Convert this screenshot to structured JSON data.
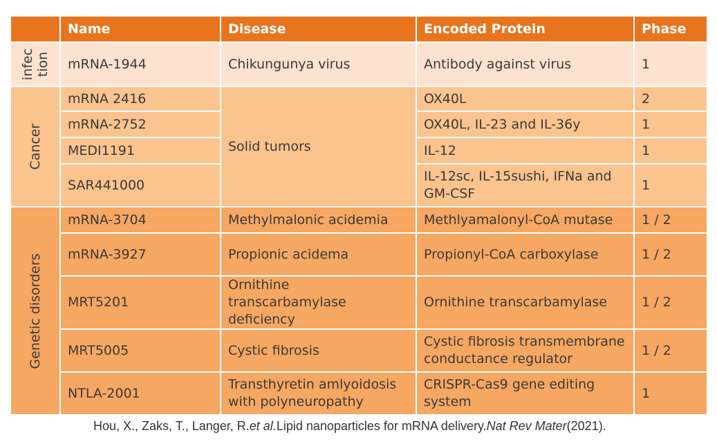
{
  "headers": {
    "name": "Name",
    "disease": "Disease",
    "protein": "Encoded Protein",
    "phase": "Phase"
  },
  "groups": {
    "infection": {
      "label_line1": "infec",
      "label_line2": "tion"
    },
    "cancer": {
      "label": "Cancer",
      "shared_disease": "Solid tumors"
    },
    "genetic": {
      "label": "Genetic disorders"
    }
  },
  "rows": [
    {
      "name": "mRNA-1944",
      "disease": "Chikungunya virus",
      "protein": "Antibody against virus",
      "phase": "1"
    },
    {
      "name": "mRNA 2416",
      "disease": "",
      "protein": "OX40L",
      "phase": "2"
    },
    {
      "name": "mRNA-2752",
      "disease": "",
      "protein": "OX40L, IL-23 and IL-36y",
      "phase": "1"
    },
    {
      "name": "MEDI1191",
      "disease": "",
      "protein": "IL-12",
      "phase": "1"
    },
    {
      "name": "SAR441000",
      "disease": "",
      "protein": "IL-12sc, IL-15sushi, IFNa and GM-CSF",
      "phase": "1"
    },
    {
      "name": "mRNA-3704",
      "disease": "Methylmalonic acidemia",
      "protein": "Methlyamalonyl-CoA  mutase",
      "phase": "1 / 2"
    },
    {
      "name": "mRNA-3927",
      "disease": "Propionic acidema",
      "protein": "Propionyl-CoA carboxylase",
      "phase": "1 / 2"
    },
    {
      "name": "MRT5201",
      "disease": "Ornithine transcarbamylase deficiency",
      "protein": "Ornithine transcarbamylase",
      "phase": "1 / 2"
    },
    {
      "name": "MRT5005",
      "disease": "Cystic fibrosis",
      "protein": "Cystic fibrosis transmembrane conductance regulator",
      "phase": "1 / 2"
    },
    {
      "name": "NTLA-2001",
      "disease": "Transthyretin amlyoidosis with polyneuropathy",
      "protein": "CRISPR-Cas9 gene editing system",
      "phase": "1"
    }
  ],
  "citation": {
    "authors": "Hou, X., Zaks, T., Langer, R.",
    "etal": "et al.",
    "title": "Lipid nanoparticles for mRNA delivery.",
    "journal": "Nat Rev Mater",
    "year": "(2021)."
  }
}
